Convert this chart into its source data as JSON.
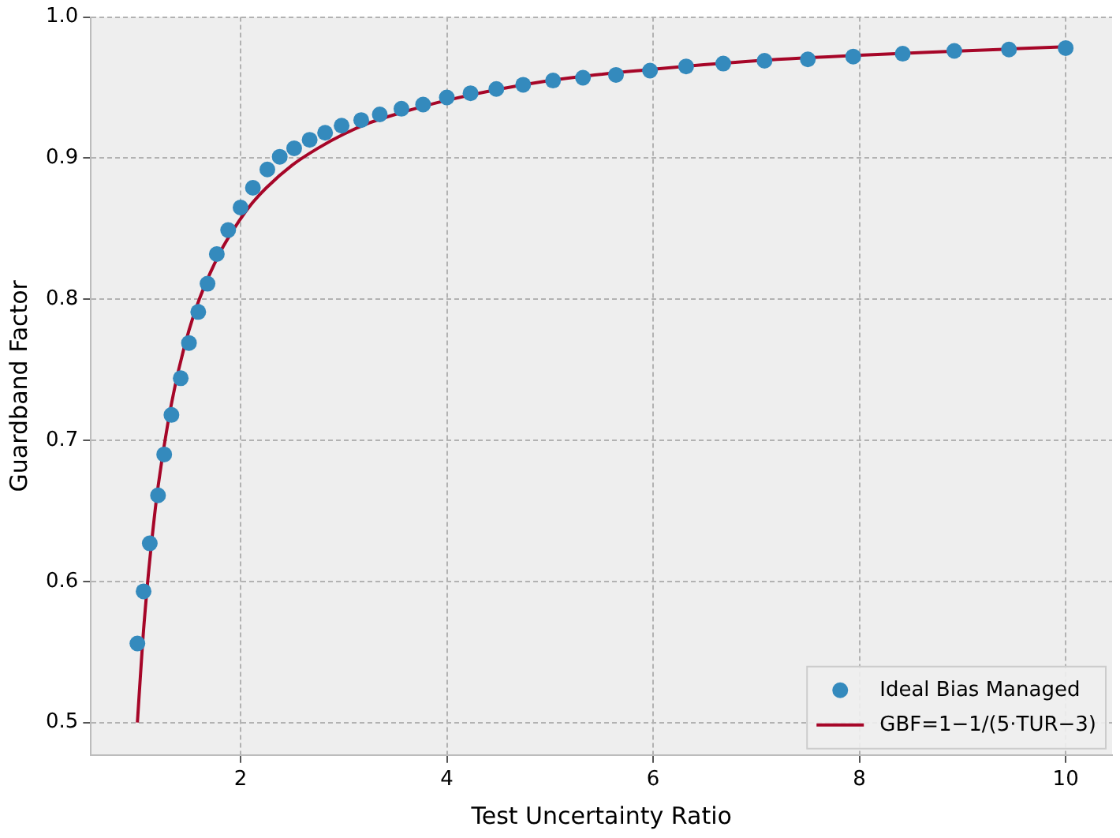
{
  "chart_data": {
    "type": "scatter",
    "xlabel": "Test Uncertainty Ratio",
    "ylabel": "Guardband Factor",
    "xlim": [
      0.55,
      10.45
    ],
    "ylim": [
      0.477,
      1.0
    ],
    "xticks": [
      2,
      4,
      6,
      8,
      10
    ],
    "yticks": [
      0.5,
      0.6,
      0.7,
      0.8,
      0.9,
      {
        "value": 1.0,
        "label": "1.0"
      }
    ],
    "grid": true,
    "legend": "bottom right",
    "series": [
      {
        "name": "Ideal Bias Managed",
        "marker": "circle",
        "color": "#348abd",
        "x": [
          1.0,
          1.06,
          1.12,
          1.2,
          1.26,
          1.33,
          1.42,
          1.5,
          1.59,
          1.68,
          1.77,
          1.88,
          2.0,
          2.12,
          2.26,
          2.38,
          2.52,
          2.67,
          2.82,
          2.98,
          3.17,
          3.35,
          3.56,
          3.77,
          4.0,
          4.23,
          4.48,
          4.74,
          5.03,
          5.32,
          5.64,
          5.97,
          6.32,
          6.68,
          7.08,
          7.5,
          7.94,
          8.42,
          8.92,
          9.45,
          10.0
        ],
        "values": [
          0.556,
          0.593,
          0.627,
          0.661,
          0.69,
          0.718,
          0.744,
          0.769,
          0.791,
          0.811,
          0.832,
          0.849,
          0.865,
          0.879,
          0.892,
          0.901,
          0.907,
          0.913,
          0.918,
          0.923,
          0.927,
          0.931,
          0.935,
          0.938,
          0.943,
          0.946,
          0.949,
          0.952,
          0.955,
          0.957,
          0.959,
          0.962,
          0.965,
          0.967,
          0.969,
          0.97,
          0.972,
          0.974,
          0.976,
          0.977,
          0.978
        ]
      },
      {
        "name": "GBF=1−1/(5·TUR−3)",
        "type": "line",
        "marker": "none",
        "line_style": "solid",
        "color": "#a60628",
        "x": [
          1,
          1.05,
          1.1,
          1.15,
          1.2,
          1.3,
          1.4,
          1.5,
          1.6,
          1.8,
          2,
          2.1,
          2.25,
          2.5,
          2.75,
          3,
          3.25,
          3.5,
          4,
          5,
          6,
          7,
          8,
          9,
          10
        ],
        "values": [
          0.5,
          0.556,
          0.6,
          0.636,
          0.667,
          0.714,
          0.75,
          0.778,
          0.8,
          0.833,
          0.857,
          0.867,
          0.879,
          0.895,
          0.907,
          0.917,
          0.925,
          0.931,
          0.941,
          0.955,
          0.963,
          0.969,
          0.973,
          0.976,
          0.979
        ]
      }
    ]
  }
}
